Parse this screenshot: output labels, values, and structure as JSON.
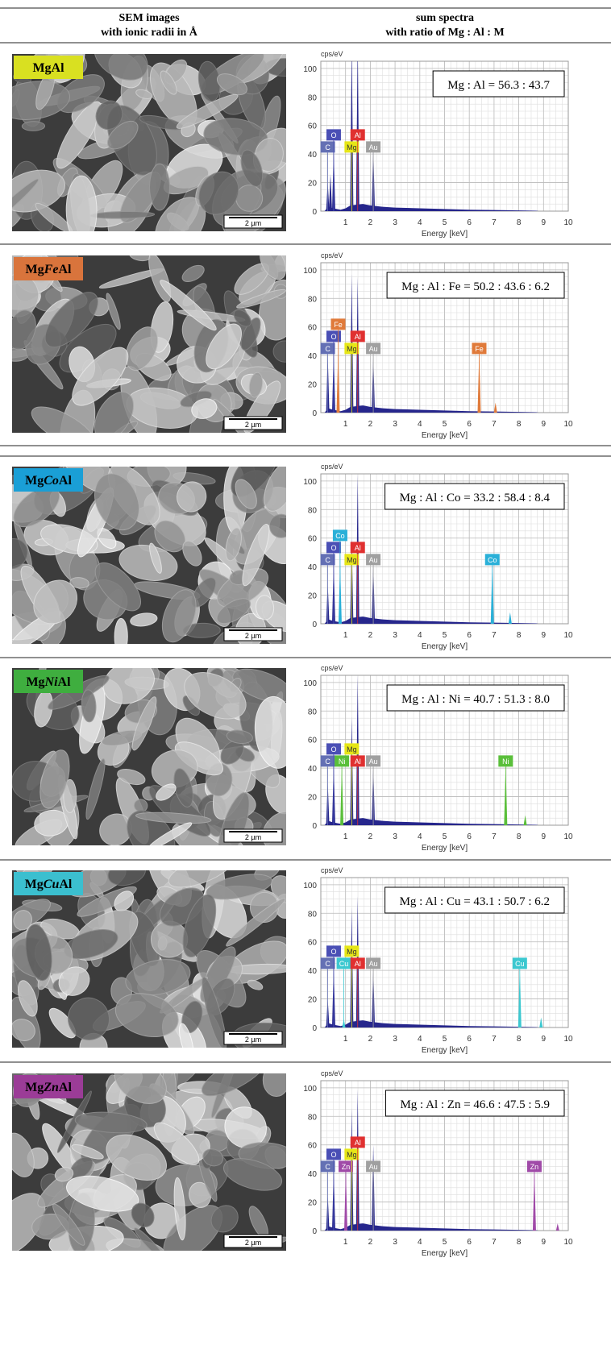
{
  "header": {
    "left": [
      "SEM images",
      "with ionic radii in Å"
    ],
    "right": [
      "sum spectra",
      "with ratio of Mg : Al : M"
    ]
  },
  "spectrum_axes": {
    "y_label": "cps/eV",
    "x_label": "Energy [keV]",
    "xlim": [
      0,
      10
    ],
    "xticks": [
      1,
      2,
      3,
      4,
      5,
      6,
      7,
      8,
      9,
      10
    ],
    "ylim": [
      0,
      105
    ],
    "yticks": [
      0,
      20,
      40,
      60,
      80,
      100
    ],
    "minor_grid": {
      "x": 0.25,
      "y": 5
    },
    "continuum": {
      "x": [
        0.15,
        0.3,
        0.5,
        0.8,
        1.0,
        1.2,
        1.7,
        2.0,
        2.5,
        3,
        4,
        5,
        6,
        7,
        8,
        8.7,
        8.8
      ],
      "values": [
        0,
        3,
        2,
        1,
        2,
        4,
        5,
        4,
        3,
        2.5,
        2,
        1.5,
        1,
        0.8,
        0.5,
        0.3,
        0
      ]
    }
  },
  "rows": [
    {
      "label": {
        "prefix": "Mg",
        "suffix": "Al"
      },
      "label_color": "#d9e021",
      "scale_bar": "2 µm",
      "ratio": "Mg : Al = 56.3 : 43.7",
      "elements": [
        {
          "name": "C",
          "energy": 0.28,
          "color": "#6470b4"
        },
        {
          "name": "O",
          "energy": 0.52,
          "color": "#4a4fb5"
        },
        {
          "name": "Mg",
          "energy": 1.25,
          "color": "#e6e617"
        },
        {
          "name": "Al",
          "energy": 1.49,
          "color": "#e03030"
        },
        {
          "name": "Au",
          "energy": 2.12,
          "color": "#a0a0a0"
        }
      ],
      "peaks": {
        "x": [
          0.28,
          0.39,
          0.52,
          1.25,
          1.49,
          2.12
        ],
        "values": [
          20,
          26,
          42,
          120,
          120,
          45
        ],
        "colors": [
          "#26268c",
          "#26268c",
          "#26268c",
          "#26268c",
          "#26268c",
          "#26268c"
        ]
      }
    },
    {
      "label": {
        "prefix": "Mg",
        "metal": "Fe",
        "suffix": "Al"
      },
      "label_color": "#d9743c",
      "scale_bar": "2 µm",
      "ratio": "Mg : Al : Fe = 50.2 : 43.6 : 6.2",
      "elements": [
        {
          "name": "C",
          "energy": 0.28,
          "color": "#6470b4"
        },
        {
          "name": "O",
          "energy": 0.52,
          "color": "#4a4fb5"
        },
        {
          "name": "Fe",
          "energy": 0.7,
          "color": "#e07a3a"
        },
        {
          "name": "Mg",
          "energy": 1.25,
          "color": "#e6e617"
        },
        {
          "name": "Al",
          "energy": 1.49,
          "color": "#e03030"
        },
        {
          "name": "Au",
          "energy": 2.12,
          "color": "#a0a0a0"
        },
        {
          "name": "Fe",
          "energy": 6.4,
          "color": "#e07a3a"
        }
      ],
      "peaks": {
        "x": [
          0.28,
          0.52,
          0.7,
          1.25,
          1.49,
          2.12,
          6.4,
          7.06
        ],
        "values": [
          40,
          42,
          42,
          97,
          95,
          40,
          42,
          7
        ],
        "colors": [
          "#26268c",
          "#26268c",
          "#e07a3a",
          "#26268c",
          "#26268c",
          "#26268c",
          "#e07a3a",
          "#e07a3a"
        ]
      }
    },
    {
      "label": {
        "prefix": "Mg",
        "metal": "Co",
        "suffix": "Al"
      },
      "label_color": "#1a9fd6",
      "scale_bar": "2 µm",
      "ratio": "Mg : Al : Co = 33.2 : 58.4 : 8.4",
      "elements": [
        {
          "name": "C",
          "energy": 0.28,
          "color": "#6470b4"
        },
        {
          "name": "O",
          "energy": 0.52,
          "color": "#4a4fb5"
        },
        {
          "name": "Co",
          "energy": 0.78,
          "color": "#2ab0d8"
        },
        {
          "name": "Mg",
          "energy": 1.25,
          "color": "#e6e617"
        },
        {
          "name": "Al",
          "energy": 1.49,
          "color": "#e03030"
        },
        {
          "name": "Au",
          "energy": 2.12,
          "color": "#a0a0a0"
        },
        {
          "name": "Co",
          "energy": 6.93,
          "color": "#2ab0d8"
        }
      ],
      "peaks": {
        "x": [
          0.28,
          0.52,
          0.78,
          1.25,
          1.49,
          2.12,
          6.93,
          7.65
        ],
        "values": [
          28,
          42,
          42,
          60,
          105,
          42,
          42,
          8
        ],
        "colors": [
          "#26268c",
          "#26268c",
          "#2ab0d8",
          "#26268c",
          "#26268c",
          "#26268c",
          "#2ab0d8",
          "#2ab0d8"
        ]
      }
    },
    {
      "label": {
        "prefix": "Mg",
        "metal": "Ni",
        "suffix": "Al"
      },
      "label_color": "#3fae3f",
      "scale_bar": "2 µm",
      "ratio": "Mg : Al : Ni = 40.7 : 51.3 : 8.0",
      "elements": [
        {
          "name": "C",
          "energy": 0.28,
          "color": "#6470b4"
        },
        {
          "name": "O",
          "energy": 0.52,
          "color": "#4a4fb5"
        },
        {
          "name": "Ni",
          "energy": 0.85,
          "color": "#5abf3a"
        },
        {
          "name": "Mg",
          "energy": 1.25,
          "color": "#e6e617"
        },
        {
          "name": "Al",
          "energy": 1.49,
          "color": "#e03030"
        },
        {
          "name": "Au",
          "energy": 2.12,
          "color": "#a0a0a0"
        },
        {
          "name": "Ni",
          "energy": 7.47,
          "color": "#5abf3a"
        }
      ],
      "peaks": {
        "x": [
          0.28,
          0.52,
          0.85,
          1.25,
          1.49,
          2.12,
          7.47,
          8.26
        ],
        "values": [
          30,
          42,
          42,
          76,
          105,
          42,
          42,
          7
        ],
        "colors": [
          "#26268c",
          "#26268c",
          "#5abf3a",
          "#26268c",
          "#26268c",
          "#26268c",
          "#5abf3a",
          "#5abf3a"
        ]
      }
    },
    {
      "label": {
        "prefix": "Mg",
        "metal": "Cu",
        "suffix": "Al"
      },
      "label_color": "#3bbfcf",
      "scale_bar": "2 µm",
      "ratio": "Mg : Al : Cu = 43.1 : 50.7 : 6.2",
      "elements": [
        {
          "name": "C",
          "energy": 0.28,
          "color": "#6470b4"
        },
        {
          "name": "O",
          "energy": 0.52,
          "color": "#4a4fb5"
        },
        {
          "name": "Cu",
          "energy": 0.93,
          "color": "#3cc8d0"
        },
        {
          "name": "Mg",
          "energy": 1.25,
          "color": "#e6e617"
        },
        {
          "name": "Al",
          "energy": 1.49,
          "color": "#e03030"
        },
        {
          "name": "Au",
          "energy": 2.12,
          "color": "#a0a0a0"
        },
        {
          "name": "Cu",
          "energy": 8.04,
          "color": "#3cc8d0"
        }
      ],
      "peaks": {
        "x": [
          0.28,
          0.52,
          0.93,
          1.25,
          1.49,
          2.12,
          8.04,
          8.9
        ],
        "values": [
          20,
          42,
          6,
          84,
          92,
          42,
          42,
          7
        ],
        "colors": [
          "#26268c",
          "#26268c",
          "#3cc8d0",
          "#26268c",
          "#26268c",
          "#26268c",
          "#3cc8d0",
          "#3cc8d0"
        ]
      }
    },
    {
      "label": {
        "prefix": "Mg",
        "metal": "Zn",
        "suffix": "Al"
      },
      "label_color": "#9b3c97",
      "scale_bar": "2 µm",
      "ratio": "Mg : Al : Zn = 46.6 : 47.5 : 5.9",
      "elements": [
        {
          "name": "C",
          "energy": 0.28,
          "color": "#6470b4"
        },
        {
          "name": "O",
          "energy": 0.52,
          "color": "#4a4fb5"
        },
        {
          "name": "Zn",
          "energy": 1.01,
          "color": "#a04aa8"
        },
        {
          "name": "Mg",
          "energy": 1.25,
          "color": "#e6e617"
        },
        {
          "name": "Al",
          "energy": 1.49,
          "color": "#e03030"
        },
        {
          "name": "Au",
          "energy": 2.12,
          "color": "#a0a0a0"
        },
        {
          "name": "Zn",
          "energy": 8.63,
          "color": "#a04aa8"
        }
      ],
      "peaks": {
        "x": [
          0.28,
          0.52,
          1.01,
          1.25,
          1.49,
          2.12,
          8.63,
          9.57
        ],
        "values": [
          25,
          42,
          42,
          86,
          99,
          60,
          42,
          5
        ],
        "colors": [
          "#26268c",
          "#26268c",
          "#a04aa8",
          "#26268c",
          "#26268c",
          "#26268c",
          "#a04aa8",
          "#a04aa8"
        ]
      }
    }
  ]
}
